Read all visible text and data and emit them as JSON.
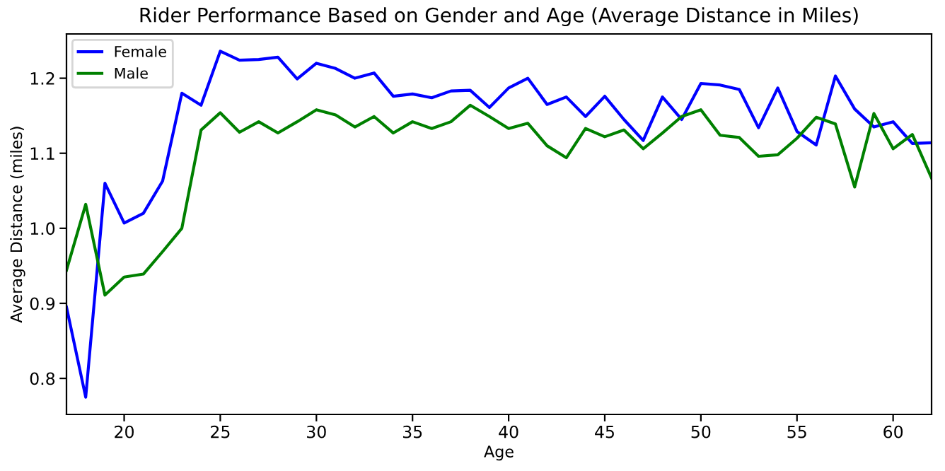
{
  "chart_data": {
    "type": "line",
    "title": "Rider Performance Based on Gender and Age (Average Distance in Miles)",
    "xlabel": "Age",
    "ylabel": "Average Distance (miles)",
    "x": [
      17,
      18,
      19,
      20,
      21,
      22,
      23,
      24,
      25,
      26,
      27,
      28,
      29,
      30,
      31,
      32,
      33,
      34,
      35,
      36,
      37,
      38,
      39,
      40,
      41,
      42,
      43,
      44,
      45,
      46,
      47,
      48,
      49,
      50,
      51,
      52,
      53,
      54,
      55,
      56,
      57,
      58,
      59,
      60,
      61,
      62
    ],
    "series": [
      {
        "name": "Female",
        "color": "#0000ff",
        "values": [
          0.895,
          0.775,
          1.06,
          1.007,
          1.02,
          1.063,
          1.18,
          1.164,
          1.236,
          1.224,
          1.225,
          1.228,
          1.199,
          1.22,
          1.213,
          1.2,
          1.207,
          1.176,
          1.179,
          1.174,
          1.183,
          1.184,
          1.161,
          1.187,
          1.2,
          1.165,
          1.175,
          1.149,
          1.176,
          1.145,
          1.117,
          1.175,
          1.145,
          1.193,
          1.191,
          1.185,
          1.134,
          1.187,
          1.129,
          1.111,
          1.203,
          1.159,
          1.135,
          1.142,
          1.113,
          1.114
        ]
      },
      {
        "name": "Male",
        "color": "#008000",
        "values": [
          0.944,
          1.032,
          0.911,
          0.935,
          0.939,
          0.969,
          1.0,
          1.131,
          1.154,
          1.128,
          1.142,
          1.127,
          1.142,
          1.158,
          1.151,
          1.135,
          1.149,
          1.127,
          1.142,
          1.133,
          1.142,
          1.164,
          1.149,
          1.133,
          1.14,
          1.11,
          1.094,
          1.133,
          1.122,
          1.131,
          1.106,
          1.127,
          1.149,
          1.158,
          1.124,
          1.121,
          1.096,
          1.098,
          1.12,
          1.148,
          1.139,
          1.055,
          1.153,
          1.106,
          1.125,
          1.067
        ]
      }
    ],
    "xlim": [
      17,
      62
    ],
    "xticks": [
      20,
      25,
      30,
      35,
      40,
      45,
      50,
      55,
      60
    ],
    "ylim": [
      0.752,
      1.259
    ],
    "yticks": [
      {
        "value": 0.8,
        "label": "0.8"
      },
      {
        "value": 0.9,
        "label": "0.9"
      },
      {
        "value": 1.0,
        "label": "1.0"
      },
      {
        "value": 1.1,
        "label": "1.1"
      },
      {
        "value": 1.2,
        "label": "1.2"
      }
    ],
    "grid": false,
    "legend": "top left",
    "marker": "none",
    "line_style": "solid"
  }
}
